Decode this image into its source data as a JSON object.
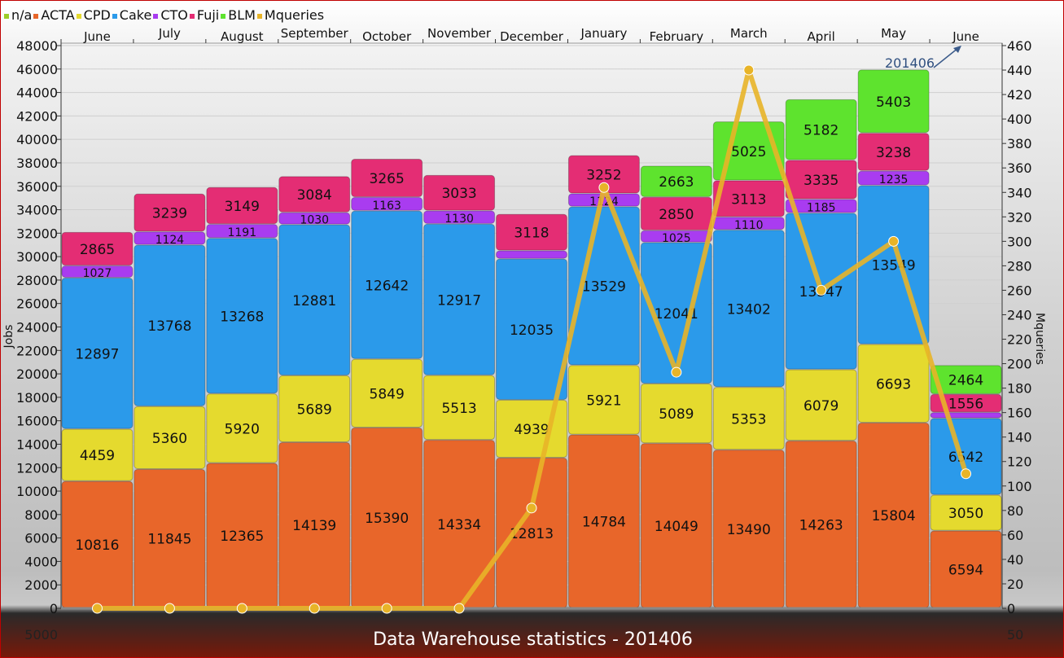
{
  "legend": [
    {
      "name": "n/a",
      "color": "#9ccc28"
    },
    {
      "name": "ACTA",
      "color": "#e8662a"
    },
    {
      "name": "CPD",
      "color": "#e5da2e"
    },
    {
      "name": "Cake",
      "color": "#2b9aea"
    },
    {
      "name": "CTO",
      "color": "#a93cf0"
    },
    {
      "name": "Fuji",
      "color": "#e42d74"
    },
    {
      "name": "BLM",
      "color": "#5ee32e"
    },
    {
      "name": "Mqueries",
      "color": "#e8b428"
    }
  ],
  "title": "Data Warehouse statistics - 201406",
  "chart_data": {
    "type": "bar",
    "stacked": true,
    "categories": [
      "June",
      "July",
      "August",
      "September",
      "October",
      "November",
      "December",
      "January",
      "February",
      "March",
      "April",
      "May",
      "June"
    ],
    "ylabel": "Jobs",
    "y2label": "Mqueries",
    "ylim": [
      -5000,
      48000
    ],
    "y2lim": [
      -50,
      460
    ],
    "yticks": [
      -5000,
      0,
      2000,
      4000,
      6000,
      8000,
      10000,
      12000,
      14000,
      16000,
      18000,
      20000,
      22000,
      24000,
      26000,
      28000,
      30000,
      32000,
      34000,
      36000,
      38000,
      40000,
      42000,
      44000,
      46000,
      48000
    ],
    "y2ticks": [
      -50,
      0,
      20,
      40,
      60,
      80,
      100,
      120,
      140,
      160,
      180,
      200,
      220,
      240,
      260,
      280,
      300,
      320,
      340,
      360,
      380,
      400,
      420,
      440,
      460
    ],
    "ytick_labels": [
      "5000",
      "0",
      "2000",
      "4000",
      "6000",
      "8000",
      "10000",
      "12000",
      "14000",
      "16000",
      "18000",
      "20000",
      "22000",
      "24000",
      "26000",
      "28000",
      "30000",
      "32000",
      "34000",
      "36000",
      "38000",
      "40000",
      "42000",
      "44000",
      "46000",
      "48000"
    ],
    "y2tick_labels": [
      "50",
      "0",
      "20",
      "40",
      "60",
      "80",
      "100",
      "120",
      "140",
      "160",
      "180",
      "200",
      "220",
      "240",
      "260",
      "280",
      "300",
      "320",
      "340",
      "360",
      "380",
      "400",
      "420",
      "440",
      "460"
    ],
    "series": [
      {
        "name": "ACTA",
        "color": "#e8662a",
        "values": [
          10816,
          11845,
          12365,
          14139,
          15390,
          14334,
          12813,
          14784,
          14049,
          13490,
          14263,
          15804,
          6594
        ],
        "labels": [
          "10816",
          "11845",
          "12365",
          "14139",
          "15390",
          "14334",
          "12813",
          "14784",
          "14049",
          "13490",
          "14263",
          "15804",
          "6594"
        ]
      },
      {
        "name": "CPD",
        "color": "#e5da2e",
        "values": [
          4459,
          5360,
          5920,
          5689,
          5849,
          5513,
          4939,
          5921,
          5089,
          5353,
          6079,
          6693,
          3050
        ],
        "labels": [
          "4459",
          "5360",
          "5920",
          "5689",
          "5849",
          "5513",
          "4939",
          "5921",
          "5089",
          "5353",
          "6079",
          "6693",
          "3050"
        ]
      },
      {
        "name": "Cake",
        "color": "#2b9aea",
        "values": [
          12897,
          13768,
          13268,
          12881,
          12642,
          12917,
          12035,
          13529,
          12041,
          13402,
          13347,
          13549,
          6542
        ],
        "labels": [
          "12897",
          "13768",
          "13268",
          "12881",
          "12642",
          "12917",
          "12035",
          "13529",
          "12041",
          "13402",
          "13347",
          "13549",
          "6542"
        ]
      },
      {
        "name": "CTO",
        "color": "#a93cf0",
        "values": [
          1027,
          1124,
          1191,
          1030,
          1163,
          1130,
          700,
          1124,
          1025,
          1110,
          1185,
          1235,
          500
        ],
        "labels": [
          "1027",
          "1124",
          "1191",
          "1030",
          "1163",
          "1130",
          "",
          "1124",
          "1025",
          "1110",
          "1185",
          "1235",
          ""
        ]
      },
      {
        "name": "Fuji",
        "color": "#e42d74",
        "values": [
          2865,
          3239,
          3149,
          3084,
          3265,
          3033,
          3118,
          3252,
          2850,
          3113,
          3335,
          3238,
          1556
        ],
        "labels": [
          "2865",
          "3239",
          "3149",
          "3084",
          "3265",
          "3033",
          "3118",
          "3252",
          "2850",
          "3113",
          "3335",
          "3238",
          "1556"
        ]
      },
      {
        "name": "BLM",
        "color": "#5ee32e",
        "values": [
          0,
          0,
          0,
          0,
          0,
          0,
          0,
          0,
          2663,
          5025,
          5182,
          5403,
          2464
        ],
        "labels": [
          "",
          "",
          "",
          "",
          "",
          "",
          "",
          "",
          "2663",
          "5025",
          "5182",
          "5403",
          "2464"
        ]
      }
    ],
    "line": {
      "name": "Mqueries",
      "color": "#e8b428",
      "axis": "right",
      "values": [
        0,
        0,
        0,
        0,
        0,
        0,
        82,
        344,
        193,
        440,
        260,
        300,
        110
      ]
    },
    "annotation": {
      "text": "201406"
    }
  }
}
